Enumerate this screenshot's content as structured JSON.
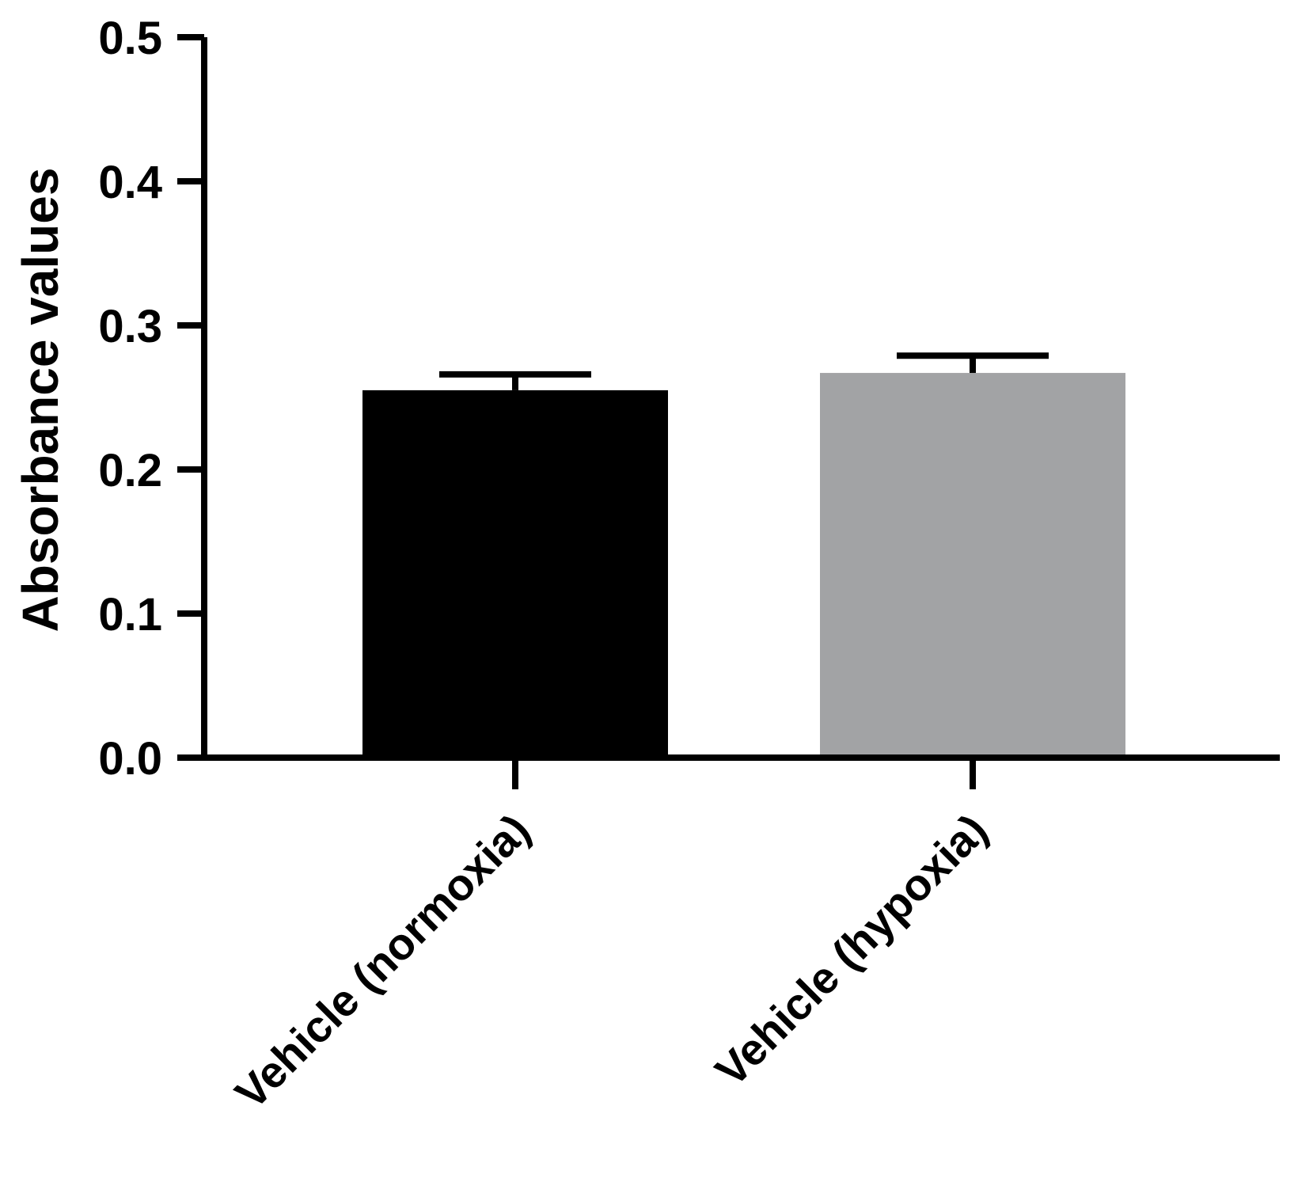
{
  "chart_data": {
    "type": "bar",
    "title": "",
    "xlabel": "",
    "ylabel": "Absorbance values",
    "ylim": [
      0,
      0.5
    ],
    "yticks": [
      "0.0",
      "0.1",
      "0.2",
      "0.3",
      "0.4",
      "0.5"
    ],
    "ytick_values": [
      0,
      0.1,
      0.2,
      0.3,
      0.4,
      0.5
    ],
    "categories": [
      "Vehicle (normoxia)",
      "Vehicle (hypoxia)"
    ],
    "values": [
      0.255,
      0.267
    ],
    "error_upper": [
      0.011,
      0.012
    ],
    "colors": [
      "#000000",
      "#a2a3a5"
    ],
    "grid": false,
    "legend": "none"
  }
}
